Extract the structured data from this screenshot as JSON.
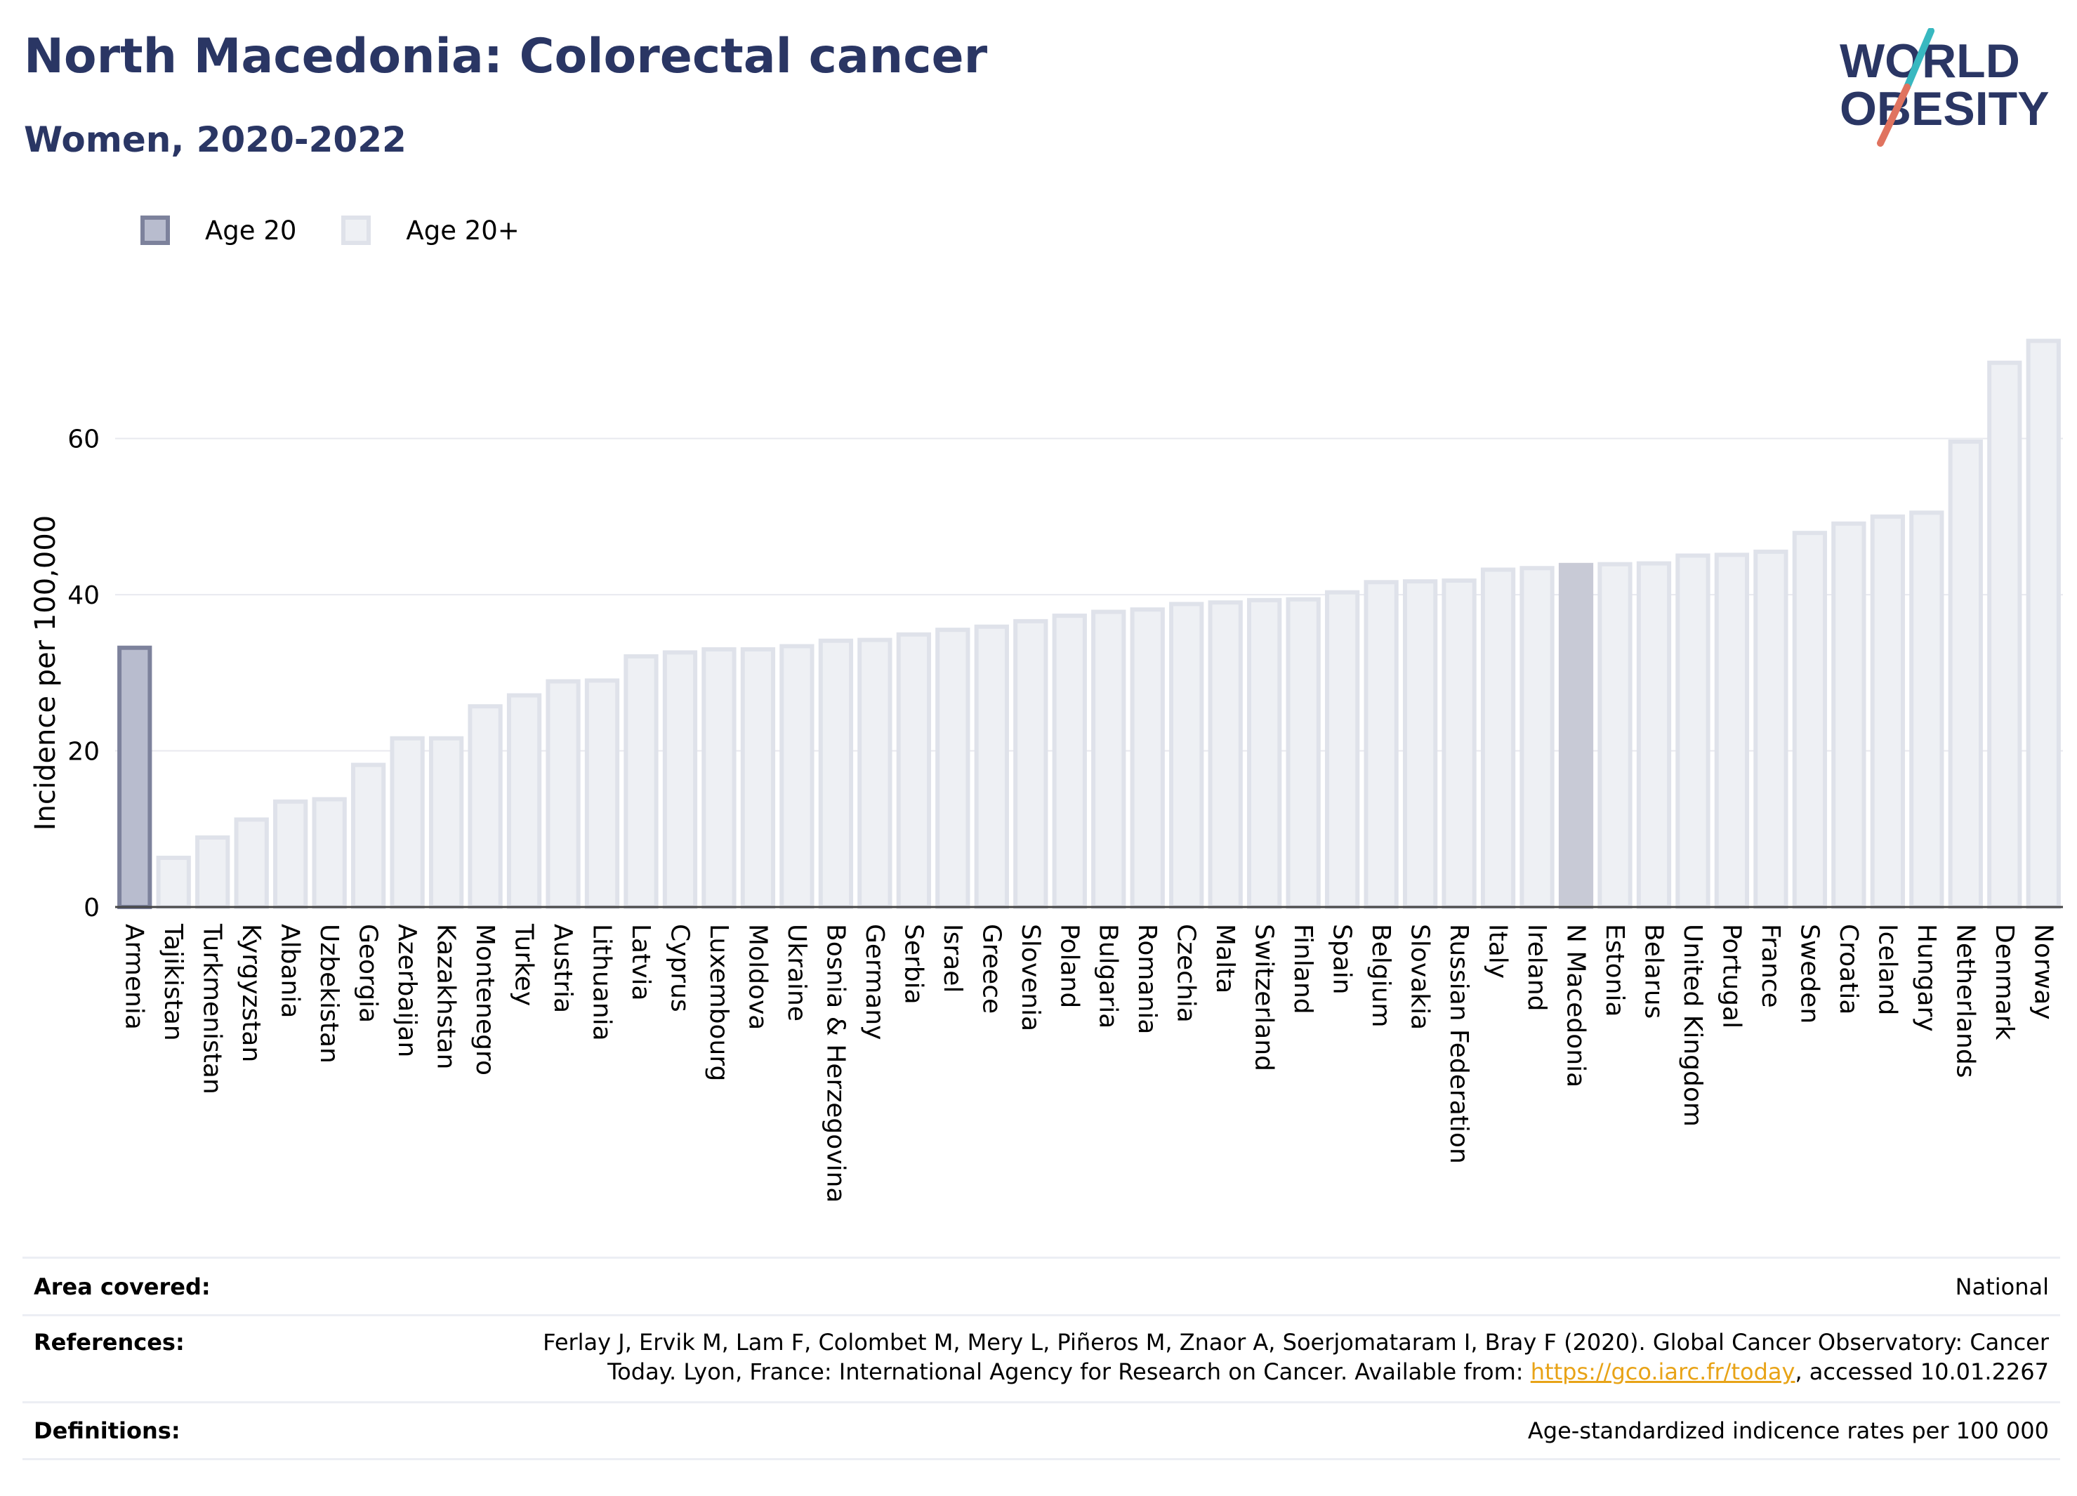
{
  "header": {
    "title": "North Macedonia: Colorectal cancer",
    "subtitle": "Women, 2020-2022"
  },
  "logo": {
    "line1": "WORLD",
    "line2": "OBESITY",
    "accent_colors": [
      "#38b8c0",
      "#e0735f"
    ]
  },
  "legend": [
    {
      "label": "Age 20",
      "color": "#b8bcce"
    },
    {
      "label": "Age 20+",
      "color": "#eef0f4"
    }
  ],
  "chart_data": {
    "type": "bar",
    "ylabel": "Incidence per 100,000",
    "ylim": [
      0,
      73
    ],
    "yticks": [
      0,
      20,
      40,
      60
    ],
    "grid": true,
    "legend_position": "top-left",
    "highlight_category": "N Macedonia",
    "categories": [
      "Armenia",
      "Tajikistan",
      "Turkmenistan",
      "Kyrgyzstan",
      "Albania",
      "Uzbekistan",
      "Georgia",
      "Azerbaijan",
      "Kazakhstan",
      "Montenegro",
      "Turkey",
      "Austria",
      "Lithuania",
      "Latvia",
      "Cyprus",
      "Luxembourg",
      "Moldova",
      "Ukraine",
      "Bosnia & Herzegovina",
      "Germany",
      "Serbia",
      "Israel",
      "Greece",
      "Slovenia",
      "Poland",
      "Bulgaria",
      "Romania",
      "Czechia",
      "Malta",
      "Switzerland",
      "Finland",
      "Spain",
      "Belgium",
      "Slovakia",
      "Russian Federation",
      "Italy",
      "Ireland",
      "N Macedonia",
      "Estonia",
      "Belarus",
      "United Kingdom",
      "Portugal",
      "France",
      "Sweden",
      "Croatia",
      "Iceland",
      "Hungary",
      "Netherlands",
      "Denmark",
      "Norway"
    ],
    "series": [
      {
        "name": "Age 20",
        "values": [
          33.2,
          null,
          null,
          null,
          null,
          null,
          null,
          null,
          null,
          null,
          null,
          null,
          null,
          null,
          null,
          null,
          null,
          null,
          null,
          null,
          null,
          null,
          null,
          null,
          null,
          null,
          null,
          null,
          null,
          null,
          null,
          null,
          null,
          null,
          null,
          null,
          null,
          null,
          null,
          null,
          null,
          null,
          null,
          null,
          null,
          null,
          null,
          null,
          null,
          null
        ]
      },
      {
        "name": "Age 20+",
        "values": [
          null,
          6.3,
          8.9,
          11.2,
          13.5,
          13.8,
          18.2,
          21.6,
          21.6,
          25.7,
          27.1,
          28.9,
          29.0,
          32.1,
          32.6,
          33.0,
          33.0,
          33.4,
          34.1,
          34.2,
          34.9,
          35.5,
          35.9,
          36.6,
          37.3,
          37.8,
          38.1,
          38.8,
          39.0,
          39.3,
          39.4,
          40.3,
          41.6,
          41.7,
          41.8,
          43.2,
          43.4,
          43.8,
          43.9,
          44.0,
          45.0,
          45.1,
          45.5,
          47.9,
          49.1,
          50.0,
          50.5,
          59.6,
          69.7,
          72.5
        ]
      }
    ]
  },
  "info": {
    "area_label": "Area covered:",
    "area_value": "National",
    "references_label": "References:",
    "references_line1": "Ferlay J, Ervik M, Lam F, Colombet M, Mery L, Piñeros M, Znaor A, Soerjomataram I, Bray F (2020). Global Cancer Observatory: Cancer",
    "references_line2_pre": "Today. Lyon, France: International Agency for Research on Cancer. Available from: ",
    "references_link": "https://gco.iarc.fr/today",
    "references_line2_post": ", accessed 10.01.2267",
    "definitions_label": "Definitions:",
    "definitions_value": "Age-standardized indicence rates per 100 000"
  }
}
